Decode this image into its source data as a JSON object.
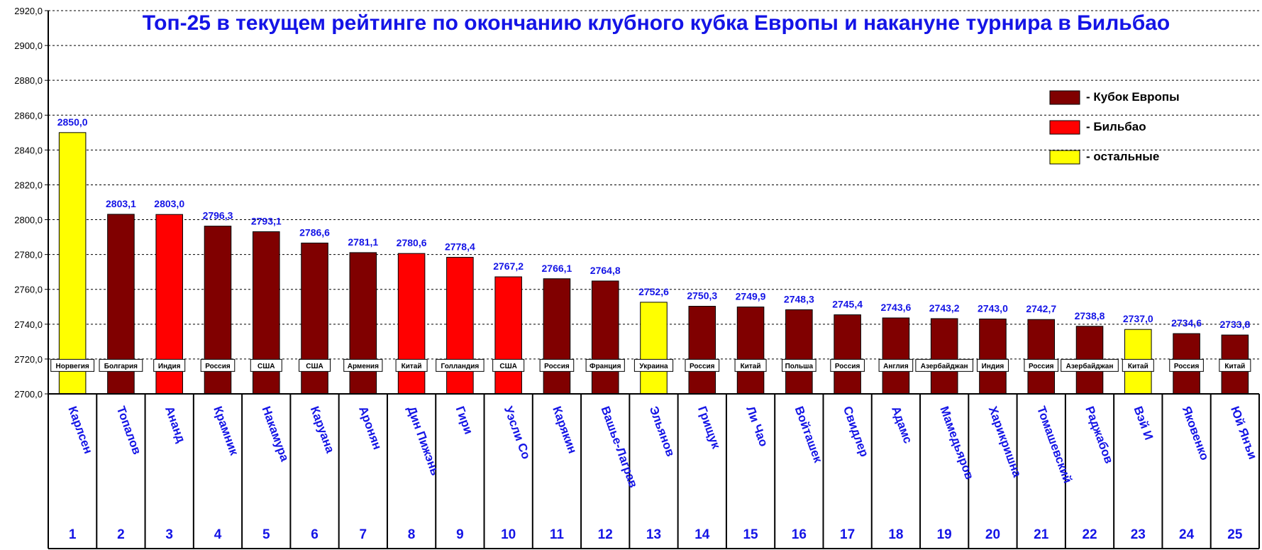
{
  "chart_data": {
    "type": "bar",
    "title": "Топ-25 в текущем рейтинге по окончанию клубного кубка Европы и накануне турнира в Бильбао",
    "ylim": [
      2700,
      2920
    ],
    "yticks": [
      "2700,0",
      "2720,0",
      "2740,0",
      "2760,0",
      "2780,0",
      "2800,0",
      "2820,0",
      "2840,0",
      "2860,0",
      "2880,0",
      "2900,0",
      "2920,0"
    ],
    "grid": true,
    "legend_position": "top-right",
    "legend": [
      {
        "key": "cup",
        "label": "- Кубок Европы",
        "color": "#800000"
      },
      {
        "key": "bilbao",
        "label": "- Бильбао",
        "color": "#ff0000"
      },
      {
        "key": "other",
        "label": "- остальные",
        "color": "#ffff00"
      }
    ],
    "players": [
      {
        "rank": "1",
        "name": "Карлсен",
        "country": "Норвегия",
        "value": 2850.0,
        "label": "2850,0",
        "group": "other"
      },
      {
        "rank": "2",
        "name": "Топалов",
        "country": "Болгария",
        "value": 2803.1,
        "label": "2803,1",
        "group": "cup"
      },
      {
        "rank": "3",
        "name": "Ананд",
        "country": "Индия",
        "value": 2803.0,
        "label": "2803,0",
        "group": "bilbao"
      },
      {
        "rank": "4",
        "name": "Крамник",
        "country": "Россия",
        "value": 2796.3,
        "label": "2796,3",
        "group": "cup"
      },
      {
        "rank": "5",
        "name": "Накамура",
        "country": "США",
        "value": 2793.1,
        "label": "2793,1",
        "group": "cup"
      },
      {
        "rank": "6",
        "name": "Каруана",
        "country": "США",
        "value": 2786.6,
        "label": "2786,6",
        "group": "cup"
      },
      {
        "rank": "7",
        "name": "Аронян",
        "country": "Армения",
        "value": 2781.1,
        "label": "2781,1",
        "group": "cup"
      },
      {
        "rank": "8",
        "name": "Дин Пижэнь",
        "country": "Китай",
        "value": 2780.6,
        "label": "2780,6",
        "group": "bilbao"
      },
      {
        "rank": "9",
        "name": "Гири",
        "country": "Голландия",
        "value": 2778.4,
        "label": "2778,4",
        "group": "bilbao"
      },
      {
        "rank": "10",
        "name": "Уэсли Со",
        "country": "США",
        "value": 2767.2,
        "label": "2767,2",
        "group": "bilbao"
      },
      {
        "rank": "11",
        "name": "Карякин",
        "country": "Россия",
        "value": 2766.1,
        "label": "2766,1",
        "group": "cup"
      },
      {
        "rank": "12",
        "name": "Вашье-Лаграв",
        "country": "Франция",
        "value": 2764.8,
        "label": "2764,8",
        "group": "cup"
      },
      {
        "rank": "13",
        "name": "Эльянов",
        "country": "Украина",
        "value": 2752.6,
        "label": "2752,6",
        "group": "other"
      },
      {
        "rank": "14",
        "name": "Грищук",
        "country": "Россия",
        "value": 2750.3,
        "label": "2750,3",
        "group": "cup"
      },
      {
        "rank": "15",
        "name": "Ли Чао",
        "country": "Китай",
        "value": 2749.9,
        "label": "2749,9",
        "group": "cup"
      },
      {
        "rank": "16",
        "name": "Войташек",
        "country": "Польша",
        "value": 2748.3,
        "label": "2748,3",
        "group": "cup"
      },
      {
        "rank": "17",
        "name": "Свидлер",
        "country": "Россия",
        "value": 2745.4,
        "label": "2745,4",
        "group": "cup"
      },
      {
        "rank": "18",
        "name": "Адамс",
        "country": "Англия",
        "value": 2743.6,
        "label": "2743,6",
        "group": "cup"
      },
      {
        "rank": "19",
        "name": "Мамедьяров",
        "country": "Азербайджан",
        "value": 2743.2,
        "label": "2743,2",
        "group": "cup"
      },
      {
        "rank": "20",
        "name": "Харикришна",
        "country": "Индия",
        "value": 2743.0,
        "label": "2743,0",
        "group": "cup"
      },
      {
        "rank": "21",
        "name": "Томашевский",
        "country": "Россия",
        "value": 2742.7,
        "label": "2742,7",
        "group": "cup"
      },
      {
        "rank": "22",
        "name": "Раджабов",
        "country": "Азербайджан",
        "value": 2738.8,
        "label": "2738,8",
        "group": "cup"
      },
      {
        "rank": "23",
        "name": "Вэй И",
        "country": "Китай",
        "value": 2737.0,
        "label": "2737,0",
        "group": "other"
      },
      {
        "rank": "24",
        "name": "Яковенко",
        "country": "Россия",
        "value": 2734.6,
        "label": "2734,6",
        "group": "cup"
      },
      {
        "rank": "25",
        "name": "Юй Янъи",
        "country": "Китай",
        "value": 2733.8,
        "label": "2733,8",
        "group": "cup"
      }
    ]
  }
}
